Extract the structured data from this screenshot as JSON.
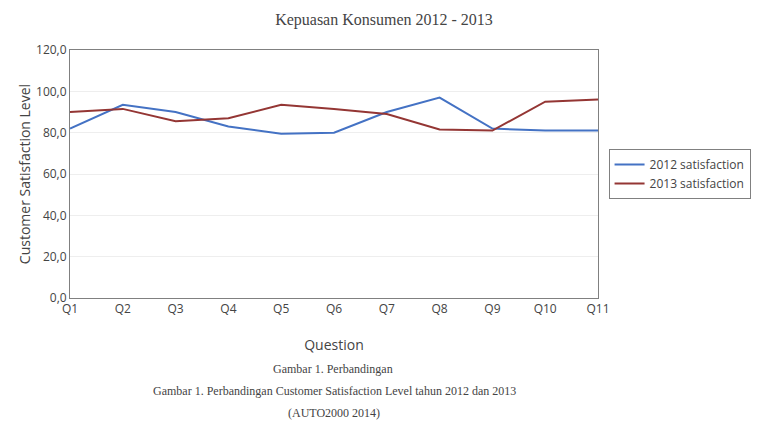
{
  "chart_data": {
    "type": "line",
    "title": "Kepuasan Konsumen 2012 - 2013",
    "x_label": "Question",
    "y_label": "Customer Satisfaction Level",
    "categories": [
      "Q1",
      "Q2",
      "Q3",
      "Q4",
      "Q5",
      "Q6",
      "Q7",
      "Q8",
      "Q9",
      "Q10",
      "Q11"
    ],
    "series": [
      {
        "name": "2012 satisfaction",
        "color": "#4472C4",
        "values": [
          82.0,
          93.5,
          90.0,
          83.0,
          79.5,
          80.0,
          90.0,
          97.0,
          82.0,
          81.0,
          81.0
        ]
      },
      {
        "name": "2013 satisfaction",
        "color": "#943634",
        "values": [
          90.0,
          91.5,
          85.5,
          87.0,
          93.5,
          91.5,
          89.0,
          81.5,
          81.0,
          95.0,
          96.0
        ]
      }
    ],
    "ylim": [
      0,
      120
    ],
    "yticks": [
      {
        "value": 0,
        "label": "0,0"
      },
      {
        "value": 20,
        "label": "20,0"
      },
      {
        "value": 40,
        "label": "40,0"
      },
      {
        "value": 60,
        "label": "60,0"
      },
      {
        "value": 80,
        "label": "80,0"
      },
      {
        "value": 100,
        "label": "100,0"
      },
      {
        "value": 120,
        "label": "120,0"
      }
    ],
    "grid": true,
    "legend": "right",
    "annotations": [
      "Gambar 1. Perbandingan ",
      "Gambar 1. Perbandingan Customer Satisfaction Level tahun 2012 dan 2013",
      "(AUTO2000 2014)"
    ]
  }
}
